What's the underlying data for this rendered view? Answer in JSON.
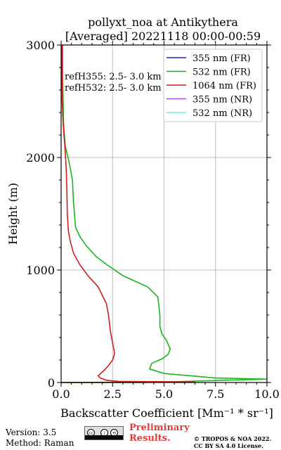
{
  "header": {
    "title_line1": "pollyxt_noa at Antikythera",
    "title_line2": "[Averaged] 20221118 00:00-00:59"
  },
  "annotation": {
    "line1": "refH355:  2.5- 3.0 km",
    "line2": "refH532:  2.5- 3.0 km"
  },
  "footer": {
    "version": "Version: 3.5",
    "method": "Method: Raman",
    "preliminary_line1": "Preliminary",
    "preliminary_line2": "Results.",
    "copyright_line1": "© TROPOS & NOA 2022.",
    "copyright_line2": "CC BY SA 4.0 License."
  },
  "chart_data": {
    "type": "line",
    "xlabel": "Backscatter Coefficient [Mm⁻¹ * sr⁻¹]",
    "ylabel": "Height (m)",
    "xlim": [
      0,
      10
    ],
    "ylim": [
      0,
      3000
    ],
    "xticks": [
      0,
      2.5,
      5,
      7.5,
      10
    ],
    "xtick_labels": [
      "0.0",
      "2.5",
      "5.0",
      "7.5",
      "10.0"
    ],
    "yticks": [
      0,
      1000,
      2000,
      3000
    ],
    "ytick_labels": [
      "0",
      "1000",
      "2000",
      "3000"
    ],
    "grid": true,
    "legend_position": "top-right",
    "series": [
      {
        "name": "355 nm (FR)",
        "color": "#2020d0",
        "points": []
      },
      {
        "name": "532 nm (FR)",
        "color": "#1eb41e",
        "points": [
          [
            0.1,
            0
          ],
          [
            4.0,
            0
          ],
          [
            10.0,
            30
          ],
          [
            7.5,
            40
          ],
          [
            5.0,
            80
          ],
          [
            4.3,
            120
          ],
          [
            4.4,
            170
          ],
          [
            4.9,
            210
          ],
          [
            5.2,
            250
          ],
          [
            5.3,
            300
          ],
          [
            5.1,
            380
          ],
          [
            4.9,
            430
          ],
          [
            4.8,
            500
          ],
          [
            4.8,
            600
          ],
          [
            4.7,
            760
          ],
          [
            4.2,
            850
          ],
          [
            3.0,
            950
          ],
          [
            2.2,
            1050
          ],
          [
            1.7,
            1120
          ],
          [
            1.2,
            1220
          ],
          [
            0.9,
            1300
          ],
          [
            0.7,
            1380
          ],
          [
            0.65,
            1500
          ],
          [
            0.6,
            1600
          ],
          [
            0.55,
            1800
          ],
          [
            0.4,
            1950
          ],
          [
            0.2,
            2100
          ],
          [
            0.12,
            2300
          ],
          [
            0.1,
            2500
          ],
          [
            0.08,
            2700
          ],
          [
            0.07,
            3000
          ]
        ]
      },
      {
        "name": "1064 nm (FR)",
        "color": "#d01e1e",
        "points": [
          [
            0.0,
            0
          ],
          [
            6.5,
            5
          ],
          [
            2.8,
            10
          ],
          [
            2.2,
            20
          ],
          [
            1.9,
            40
          ],
          [
            1.8,
            60
          ],
          [
            2.1,
            110
          ],
          [
            2.3,
            150
          ],
          [
            2.5,
            200
          ],
          [
            2.6,
            260
          ],
          [
            2.5,
            350
          ],
          [
            2.4,
            450
          ],
          [
            2.3,
            600
          ],
          [
            2.2,
            700
          ],
          [
            1.8,
            850
          ],
          [
            1.3,
            950
          ],
          [
            0.9,
            1050
          ],
          [
            0.6,
            1150
          ],
          [
            0.45,
            1250
          ],
          [
            0.35,
            1350
          ],
          [
            0.3,
            1500
          ],
          [
            0.28,
            1700
          ],
          [
            0.25,
            1900
          ],
          [
            0.18,
            2100
          ],
          [
            0.1,
            2300
          ],
          [
            0.05,
            2500
          ],
          [
            0.04,
            2700
          ],
          [
            0.04,
            3000
          ]
        ]
      },
      {
        "name": "355 nm (NR)",
        "color": "#a34ee6",
        "points": []
      },
      {
        "name": "532 nm (NR)",
        "color": "#64f0c8",
        "points": []
      }
    ]
  }
}
